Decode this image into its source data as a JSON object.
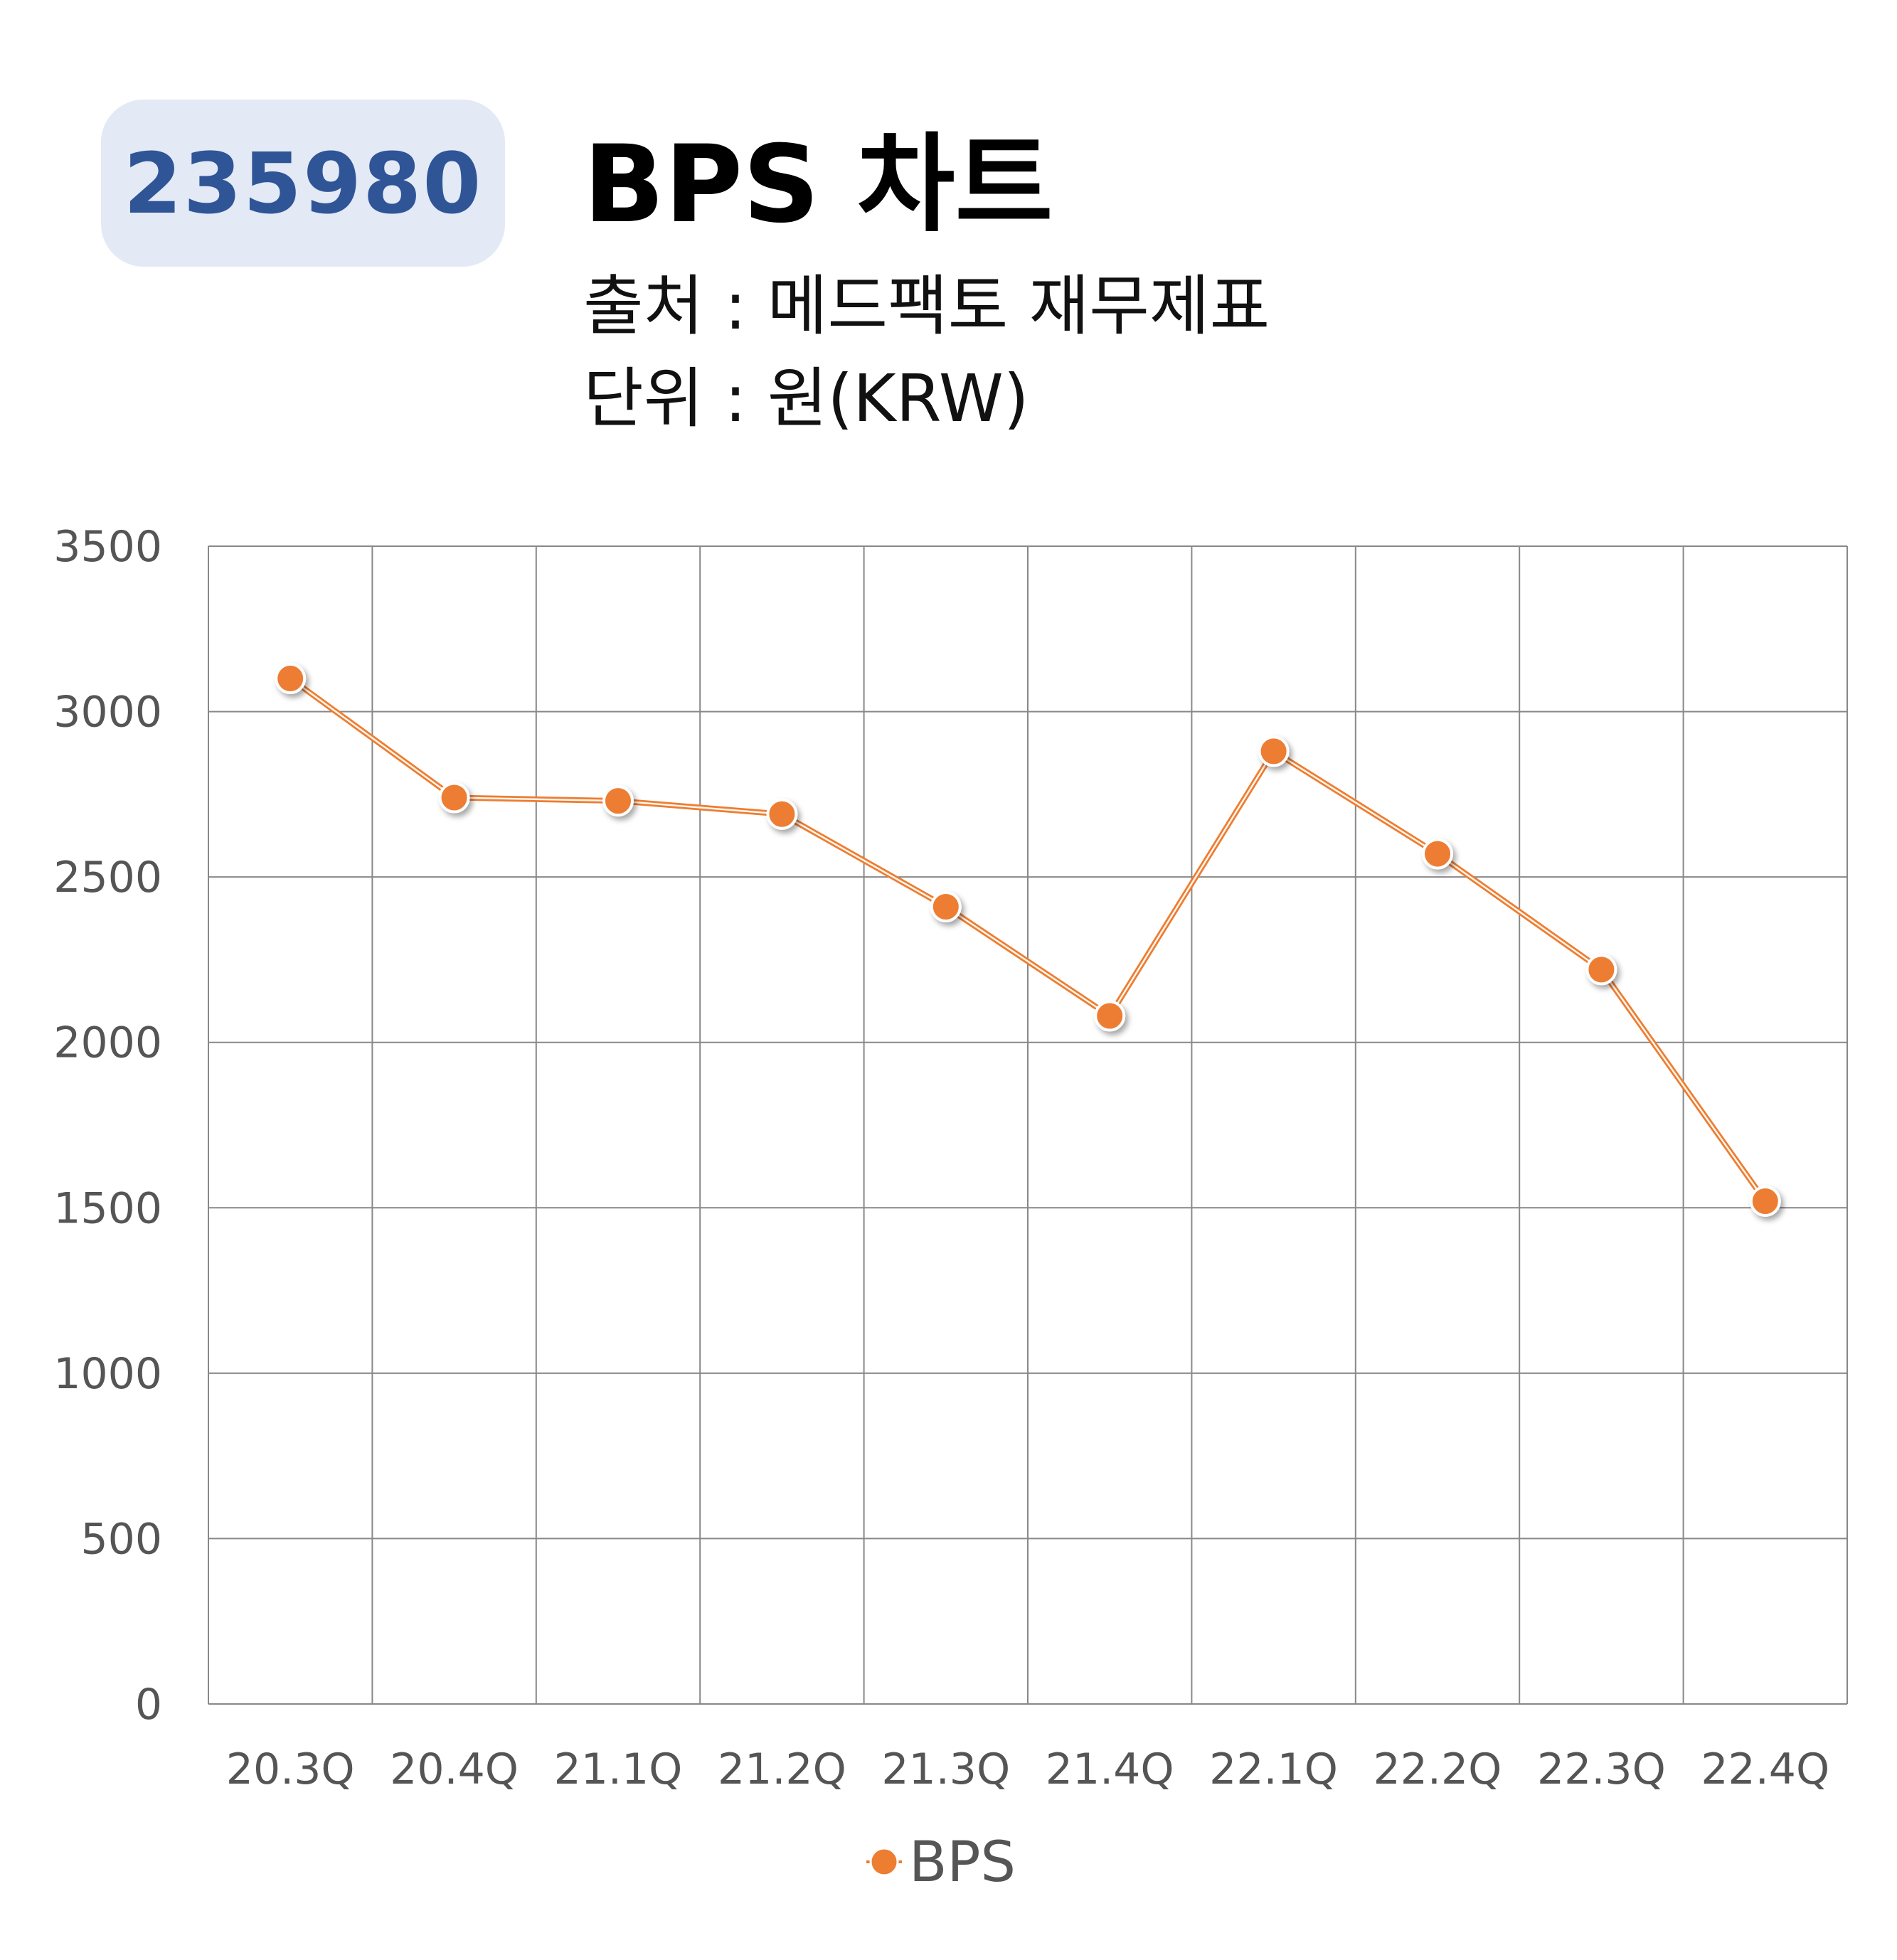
{
  "header": {
    "code": "235980",
    "title": "BPS 차트",
    "source": "출처 : 메드팩토 재무제표",
    "unit": "단위 : 원(KRW)"
  },
  "colors": {
    "series": "#ed7d31",
    "badge_bg": "#e3e9f5",
    "badge_text": "#2f5597",
    "grid": "#888888"
  },
  "chart_data": {
    "type": "line",
    "title": "BPS 차트",
    "categories": [
      "20.3Q",
      "20.4Q",
      "21.1Q",
      "21.2Q",
      "21.3Q",
      "21.4Q",
      "22.1Q",
      "22.2Q",
      "22.3Q",
      "22.4Q"
    ],
    "series": [
      {
        "name": "BPS",
        "values": [
          3100,
          2740,
          2730,
          2690,
          2410,
          2080,
          2880,
          2570,
          2220,
          1520
        ]
      }
    ],
    "ylim": [
      0,
      3500
    ],
    "yticks": [
      0,
      500,
      1000,
      1500,
      2000,
      2500,
      3000,
      3500
    ],
    "grid": true,
    "legend": "bottom-center"
  }
}
